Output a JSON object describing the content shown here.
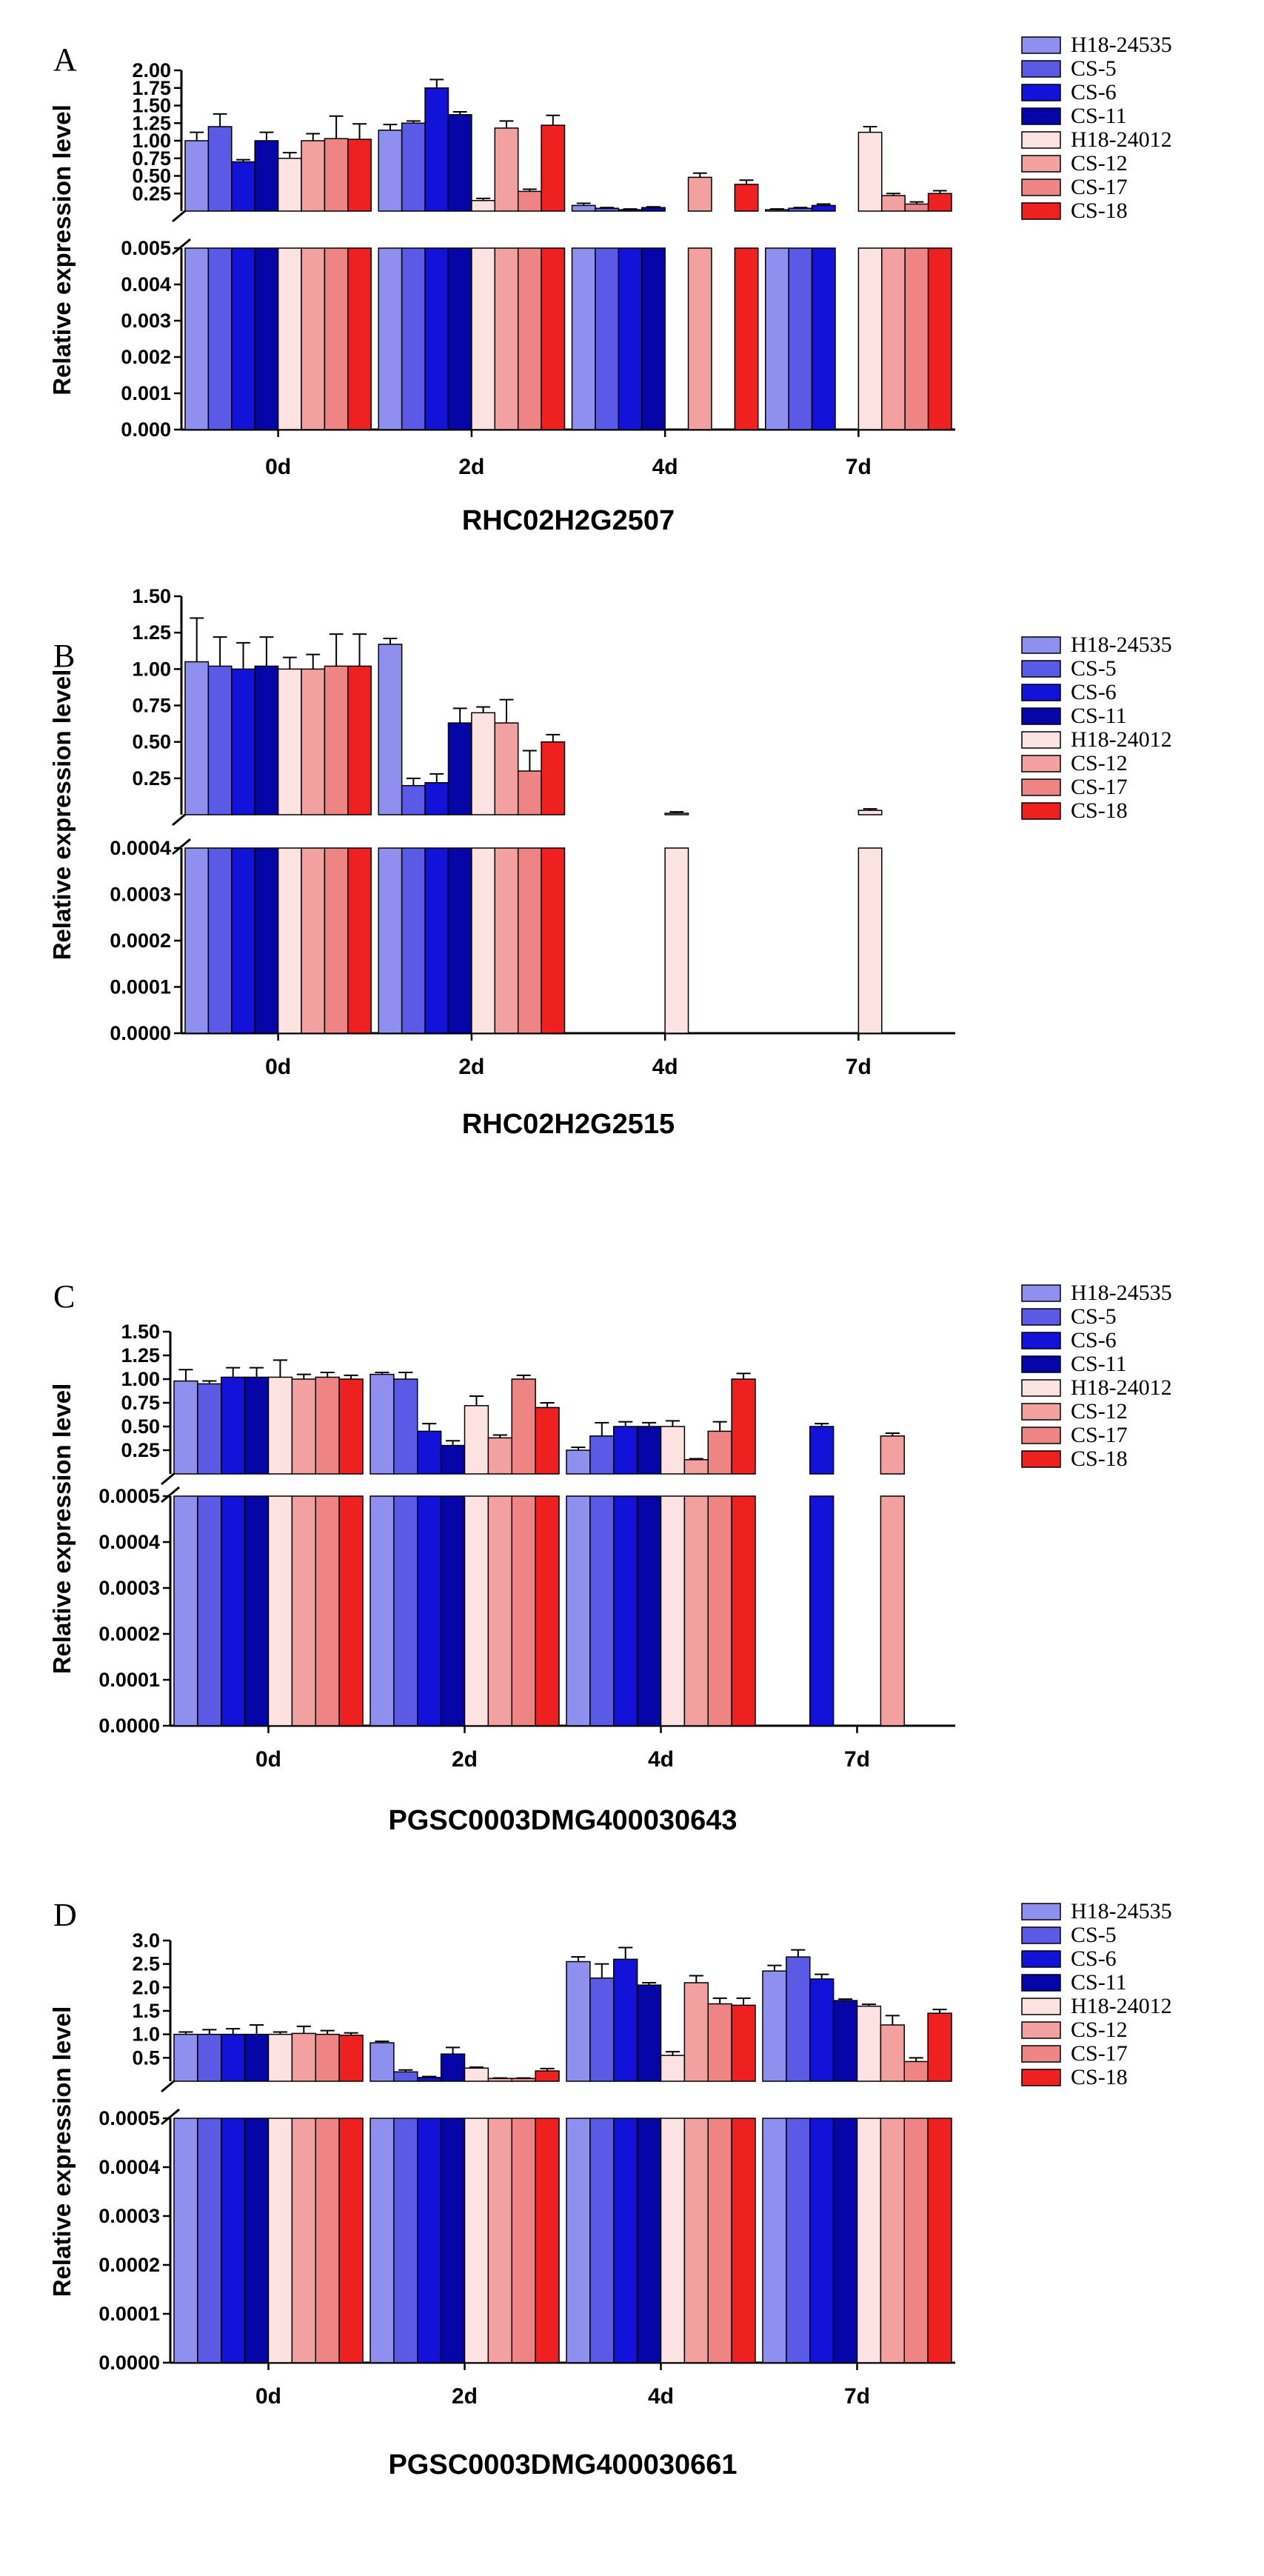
{
  "colors": [
    "#8f8ff0",
    "#5a5ae6",
    "#1212d8",
    "#0606a8",
    "#fde2e2",
    "#f3a0a0",
    "#ef8484",
    "#ef2020"
  ],
  "chart_data": [
    {
      "type": "bar",
      "panel": "A",
      "title": "RHC02H2G2507",
      "ylabel": "Relative expression level",
      "categories": [
        "0d",
        "2d",
        "4d",
        "7d"
      ],
      "upper_ylim": [
        0,
        2.0
      ],
      "upper_ticks": [
        "0.25",
        "0.50",
        "0.75",
        "1.00",
        "1.25",
        "1.50",
        "1.75",
        "2.00"
      ],
      "lower_ylim": [
        0,
        0.005
      ],
      "lower_ticks": [
        "0.000",
        "0.001",
        "0.002",
        "0.003",
        "0.004",
        "0.005"
      ],
      "series": [
        {
          "name": "H18-24535",
          "values": [
            1.0,
            1.15,
            0.08,
            0.02
          ],
          "errors": [
            0.12,
            0.08,
            0.03,
            0.01
          ]
        },
        {
          "name": "CS-5",
          "values": [
            1.2,
            1.25,
            0.04,
            0.04
          ],
          "errors": [
            0.18,
            0.03,
            0.01,
            0.01
          ]
        },
        {
          "name": "CS-6",
          "values": [
            0.7,
            1.75,
            0.02,
            0.08
          ],
          "errors": [
            0.03,
            0.12,
            0.01,
            0.02
          ]
        },
        {
          "name": "CS-11",
          "values": [
            1.0,
            1.37,
            0.05,
            0.0
          ],
          "errors": [
            0.12,
            0.04,
            0.01,
            0.0
          ]
        },
        {
          "name": "H18-24012",
          "values": [
            0.75,
            0.15,
            0.0,
            1.12
          ],
          "errors": [
            0.08,
            0.03,
            0.0,
            0.08
          ]
        },
        {
          "name": "CS-12",
          "values": [
            1.0,
            1.18,
            0.48,
            0.22
          ],
          "errors": [
            0.1,
            0.1,
            0.06,
            0.03
          ]
        },
        {
          "name": "CS-17",
          "values": [
            1.03,
            0.28,
            0.0,
            0.1
          ],
          "errors": [
            0.32,
            0.03,
            0.0,
            0.03
          ]
        },
        {
          "name": "CS-18",
          "values": [
            1.02,
            1.22,
            0.38,
            0.25
          ],
          "errors": [
            0.22,
            0.14,
            0.06,
            0.04
          ]
        }
      ]
    },
    {
      "type": "bar",
      "panel": "B",
      "title": "RHC02H2G2515",
      "ylabel": "Relative expression level",
      "categories": [
        "0d",
        "2d",
        "4d",
        "7d"
      ],
      "upper_ylim": [
        0,
        1.5
      ],
      "upper_ticks": [
        "0.25",
        "0.50",
        "0.75",
        "1.00",
        "1.25",
        "1.50"
      ],
      "lower_ylim": [
        0,
        0.0004
      ],
      "lower_ticks": [
        "0.0000",
        "0.0001",
        "0.0002",
        "0.0003",
        "0.0004"
      ],
      "series": [
        {
          "name": "H18-24535",
          "values": [
            1.05,
            1.17,
            0.0,
            0.0
          ],
          "errors": [
            0.3,
            0.04,
            0.0,
            0.0
          ]
        },
        {
          "name": "CS-5",
          "values": [
            1.02,
            0.2,
            0.0,
            0.0
          ],
          "errors": [
            0.2,
            0.05,
            0.0,
            0.0
          ]
        },
        {
          "name": "CS-6",
          "values": [
            1.0,
            0.22,
            0.0,
            0.0
          ],
          "errors": [
            0.18,
            0.06,
            0.0,
            0.0
          ]
        },
        {
          "name": "CS-11",
          "values": [
            1.02,
            0.63,
            0.0,
            0.0
          ],
          "errors": [
            0.2,
            0.1,
            0.0,
            0.0
          ]
        },
        {
          "name": "H18-24012",
          "values": [
            1.0,
            0.7,
            0.01,
            0.03
          ],
          "errors": [
            0.08,
            0.04,
            0.01,
            0.01
          ]
        },
        {
          "name": "CS-12",
          "values": [
            1.0,
            0.63,
            0.0,
            0.0
          ],
          "errors": [
            0.1,
            0.16,
            0.0,
            0.0
          ]
        },
        {
          "name": "CS-17",
          "values": [
            1.02,
            0.3,
            0.0,
            0.0
          ],
          "errors": [
            0.22,
            0.14,
            0.0,
            0.0
          ]
        },
        {
          "name": "CS-18",
          "values": [
            1.02,
            0.5,
            0.0,
            0.0
          ],
          "errors": [
            0.22,
            0.05,
            0.0,
            0.0
          ]
        }
      ]
    },
    {
      "type": "bar",
      "panel": "C",
      "title": "PGSC0003DMG400030643",
      "ylabel": "Relative expression level",
      "categories": [
        "0d",
        "2d",
        "4d",
        "7d"
      ],
      "upper_ylim": [
        0,
        1.5
      ],
      "upper_ticks": [
        "0.25",
        "0.50",
        "0.75",
        "1.00",
        "1.25",
        "1.50"
      ],
      "lower_ylim": [
        0,
        0.0005
      ],
      "lower_ticks": [
        "0.0000",
        "0.0001",
        "0.0002",
        "0.0003",
        "0.0004",
        "0.0005"
      ],
      "series": [
        {
          "name": "H18-24535",
          "values": [
            0.98,
            1.05,
            0.25,
            0.0
          ],
          "errors": [
            0.12,
            0.02,
            0.03,
            0.0
          ]
        },
        {
          "name": "CS-5",
          "values": [
            0.95,
            1.0,
            0.4,
            0.0
          ],
          "errors": [
            0.03,
            0.07,
            0.14,
            0.0
          ]
        },
        {
          "name": "CS-6",
          "values": [
            1.02,
            0.45,
            0.5,
            0.5
          ],
          "errors": [
            0.1,
            0.08,
            0.05,
            0.03
          ]
        },
        {
          "name": "CS-11",
          "values": [
            1.02,
            0.3,
            0.5,
            0.0
          ],
          "errors": [
            0.1,
            0.05,
            0.04,
            0.0
          ]
        },
        {
          "name": "H18-24012",
          "values": [
            1.02,
            0.72,
            0.5,
            0.0
          ],
          "errors": [
            0.18,
            0.1,
            0.06,
            0.0
          ]
        },
        {
          "name": "CS-12",
          "values": [
            1.0,
            0.38,
            0.15,
            0.4
          ],
          "errors": [
            0.05,
            0.03,
            0.01,
            0.03
          ]
        },
        {
          "name": "CS-17",
          "values": [
            1.02,
            1.0,
            0.45,
            0.0
          ],
          "errors": [
            0.05,
            0.04,
            0.1,
            0.0
          ]
        },
        {
          "name": "CS-18",
          "values": [
            1.0,
            0.7,
            1.0,
            0.0
          ],
          "errors": [
            0.04,
            0.05,
            0.06,
            0.0
          ]
        }
      ]
    },
    {
      "type": "bar",
      "panel": "D",
      "title": "PGSC0003DMG400030661",
      "ylabel": "Relative expression level",
      "categories": [
        "0d",
        "2d",
        "4d",
        "7d"
      ],
      "upper_ylim": [
        0,
        3.0
      ],
      "upper_ticks": [
        "0.5",
        "1.0",
        "1.5",
        "2.0",
        "2.5",
        "3.0"
      ],
      "lower_ylim": [
        0,
        0.0005
      ],
      "lower_ticks": [
        "0.0000",
        "0.0001",
        "0.0002",
        "0.0003",
        "0.0004",
        "0.0005"
      ],
      "series": [
        {
          "name": "H18-24535",
          "values": [
            1.0,
            0.82,
            2.55,
            2.35
          ],
          "errors": [
            0.05,
            0.03,
            0.1,
            0.12
          ]
        },
        {
          "name": "CS-5",
          "values": [
            1.0,
            0.2,
            2.2,
            2.65
          ],
          "errors": [
            0.1,
            0.04,
            0.3,
            0.15
          ]
        },
        {
          "name": "CS-6",
          "values": [
            1.0,
            0.08,
            2.6,
            2.18
          ],
          "errors": [
            0.12,
            0.02,
            0.25,
            0.1
          ]
        },
        {
          "name": "CS-11",
          "values": [
            1.0,
            0.58,
            2.05,
            1.72
          ],
          "errors": [
            0.2,
            0.14,
            0.05,
            0.03
          ]
        },
        {
          "name": "H18-24012",
          "values": [
            1.0,
            0.28,
            0.55,
            1.6
          ],
          "errors": [
            0.05,
            0.02,
            0.08,
            0.04
          ]
        },
        {
          "name": "CS-12",
          "values": [
            1.02,
            0.06,
            2.1,
            1.2
          ],
          "errors": [
            0.15,
            0.01,
            0.15,
            0.2
          ]
        },
        {
          "name": "CS-17",
          "values": [
            1.0,
            0.06,
            1.65,
            0.42
          ],
          "errors": [
            0.08,
            0.01,
            0.12,
            0.08
          ]
        },
        {
          "name": "CS-18",
          "values": [
            0.98,
            0.22,
            1.62,
            1.45
          ],
          "errors": [
            0.05,
            0.05,
            0.15,
            0.08
          ]
        }
      ]
    }
  ]
}
